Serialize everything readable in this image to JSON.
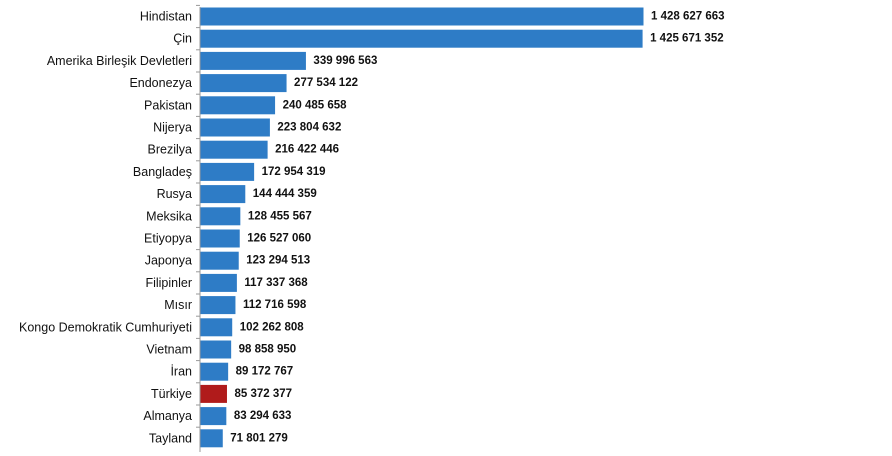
{
  "chart_data": {
    "type": "bar",
    "orientation": "horizontal",
    "title": "",
    "xlabel": "",
    "ylabel": "",
    "grid": false,
    "legend": "none",
    "colors": {
      "default": "#2E7CC6",
      "highlight": "#B01B1B",
      "axis": "#999999"
    },
    "highlight_category": "Türkiye",
    "categories": [
      "Hindistan",
      "Çin",
      "Amerika Birleşik Devletleri",
      "Endonezya",
      "Pakistan",
      "Nijerya",
      "Brezilya",
      "Bangladeş",
      "Rusya",
      "Meksika",
      "Etiyopya",
      "Japonya",
      "Filipinler",
      "Mısır",
      "Kongo Demokratik Cumhuriyeti",
      "Vietnam",
      "İran",
      "Türkiye",
      "Almanya",
      "Tayland"
    ],
    "values": [
      1428627663,
      1425671352,
      339996563,
      277534122,
      240485658,
      223804632,
      216422446,
      172954319,
      144444359,
      128455567,
      126527060,
      123294513,
      117337368,
      112716598,
      102262808,
      98858950,
      89172767,
      85372377,
      83294633,
      71801279
    ],
    "value_labels": [
      "1 428 627 663",
      "1 425 671 352",
      "339 996 563",
      "277 534 122",
      "240 485 658",
      "223 804 632",
      "216 422 446",
      "172 954 319",
      "144 444 359",
      "128 455 567",
      "126 527 060",
      "123 294 513",
      "117 337 368",
      "112 716 598",
      "102 262 808",
      "98 858 950",
      "89 172 767",
      "85 372 377",
      "83 294 633",
      "71 801 279"
    ]
  }
}
